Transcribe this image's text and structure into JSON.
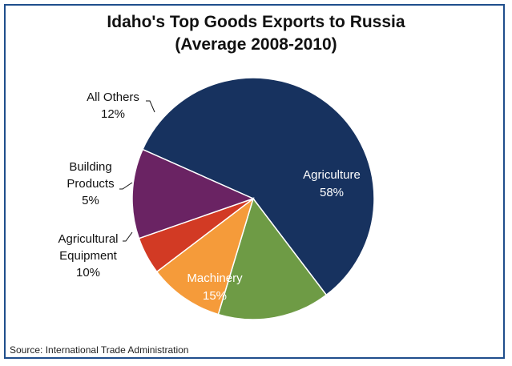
{
  "chart_data": {
    "type": "pie",
    "title": "Idaho's Top Goods Exports to Russia",
    "subtitle": "(Average 2008-2010)",
    "slices": [
      {
        "label": "Agriculture",
        "value": 58,
        "value_label": "58%",
        "color": "#17325f",
        "label_position": "inside"
      },
      {
        "label": "Machinery",
        "value": 15,
        "value_label": "15%",
        "color": "#6e9b45",
        "label_position": "inside"
      },
      {
        "label": "Agricultural Equipment",
        "value": 10,
        "value_label": "10%",
        "color": "#f59b3a",
        "label_position": "outside"
      },
      {
        "label": "Building Products",
        "value": 5,
        "value_label": "5%",
        "color": "#d23a24",
        "label_position": "outside"
      },
      {
        "label": "All Others",
        "value": 12,
        "value_label": "12%",
        "color": "#6a2363",
        "label_position": "outside"
      }
    ],
    "source": "Source: International Trade Administration"
  }
}
